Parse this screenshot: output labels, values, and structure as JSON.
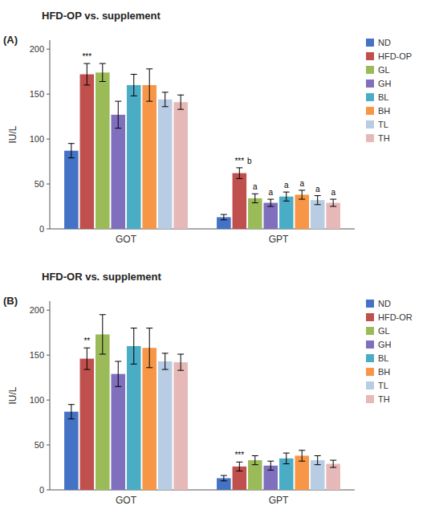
{
  "chart_data": [
    {
      "type": "bar",
      "title": "HFD-OP vs. supplement",
      "panel_label": "(A)",
      "categories": [
        "GOT",
        "GPT"
      ],
      "series": [
        {
          "name": "ND",
          "color": "#4472c4",
          "values": [
            87,
            13
          ],
          "errors": [
            8,
            3
          ]
        },
        {
          "name": "HFD-OP",
          "color": "#c0504d",
          "values": [
            172,
            62
          ],
          "errors": [
            12,
            6
          ]
        },
        {
          "name": "GL",
          "color": "#9bbb59",
          "values": [
            174,
            34
          ],
          "errors": [
            10,
            5
          ]
        },
        {
          "name": "GH",
          "color": "#7f6fbd",
          "values": [
            127,
            29
          ],
          "errors": [
            15,
            4
          ]
        },
        {
          "name": "BL",
          "color": "#4bacc6",
          "values": [
            160,
            36
          ],
          "errors": [
            12,
            5
          ]
        },
        {
          "name": "BH",
          "color": "#f79646",
          "values": [
            160,
            38
          ],
          "errors": [
            18,
            5
          ]
        },
        {
          "name": "TL",
          "color": "#b8cce4",
          "values": [
            144,
            32
          ],
          "errors": [
            8,
            5
          ]
        },
        {
          "name": "TH",
          "color": "#e6b8b7",
          "values": [
            141,
            29
          ],
          "errors": [
            8,
            4
          ]
        }
      ],
      "annotations": [
        {
          "category": "GOT",
          "series": "HFD-OP",
          "text": "***"
        },
        {
          "category": "GPT",
          "series": "HFD-OP",
          "text": "***"
        },
        {
          "category": "GPT",
          "series": "HFD-OP",
          "text": "b"
        },
        {
          "category": "GPT",
          "series": "GL",
          "text": "a"
        },
        {
          "category": "GPT",
          "series": "GH",
          "text": "a"
        },
        {
          "category": "GPT",
          "series": "BL",
          "text": "a"
        },
        {
          "category": "GPT",
          "series": "BH",
          "text": "a"
        },
        {
          "category": "GPT",
          "series": "TL",
          "text": "a"
        },
        {
          "category": "GPT",
          "series": "TH",
          "text": "a"
        }
      ],
      "y_label": "IU/L",
      "ylim": [
        0,
        210
      ],
      "yticks": [
        0,
        50,
        100,
        150,
        200
      ],
      "grid": false,
      "legend": "upper right"
    },
    {
      "type": "bar",
      "title": "HFD-OR vs. supplement",
      "panel_label": "(B)",
      "categories": [
        "GOT",
        "GPT"
      ],
      "series": [
        {
          "name": "ND",
          "color": "#4472c4",
          "values": [
            87,
            13
          ],
          "errors": [
            8,
            3
          ]
        },
        {
          "name": "HFD-OR",
          "color": "#c0504d",
          "values": [
            146,
            26
          ],
          "errors": [
            12,
            5
          ]
        },
        {
          "name": "GL",
          "color": "#9bbb59",
          "values": [
            173,
            33
          ],
          "errors": [
            22,
            5
          ]
        },
        {
          "name": "GH",
          "color": "#7f6fbd",
          "values": [
            129,
            27
          ],
          "errors": [
            14,
            5
          ]
        },
        {
          "name": "BL",
          "color": "#4bacc6",
          "values": [
            160,
            35
          ],
          "errors": [
            20,
            6
          ]
        },
        {
          "name": "BH",
          "color": "#f79646",
          "values": [
            158,
            38
          ],
          "errors": [
            22,
            6
          ]
        },
        {
          "name": "TL",
          "color": "#b8cce4",
          "values": [
            143,
            33
          ],
          "errors": [
            9,
            5
          ]
        },
        {
          "name": "TH",
          "color": "#e6b8b7",
          "values": [
            142,
            29
          ],
          "errors": [
            9,
            4
          ]
        }
      ],
      "annotations": [
        {
          "category": "GOT",
          "series": "HFD-OR",
          "text": "**"
        },
        {
          "category": "GPT",
          "series": "HFD-OR",
          "text": "***"
        }
      ],
      "y_label": "IU/L",
      "ylim": [
        0,
        210
      ],
      "yticks": [
        0,
        50,
        100,
        150,
        200
      ],
      "grid": false,
      "legend": "upper right"
    }
  ]
}
